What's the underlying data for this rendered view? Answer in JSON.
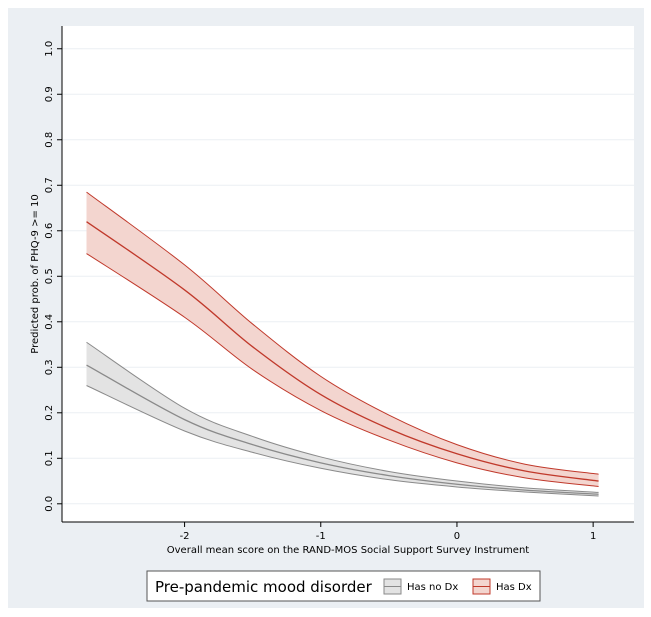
{
  "chart_data": {
    "type": "line",
    "title": "",
    "xlabel": "Overall mean score on the RAND-MOS Social Support Survey Instrument",
    "ylabel": "Predicted prob. of PHQ-9 >= 10",
    "xlim": [
      -2.9,
      1.3
    ],
    "ylim": [
      -0.04,
      1.05
    ],
    "xticks": [
      -2,
      -1,
      0,
      1
    ],
    "xtick_labels": [
      "-2",
      "-1",
      "0",
      "1"
    ],
    "yticks": [
      0,
      0.1,
      0.2,
      0.3,
      0.4,
      0.5,
      0.6,
      0.7,
      0.8,
      0.9,
      1.0
    ],
    "ytick_labels": [
      "0.0",
      "0.1",
      "0.2",
      "0.3",
      "0.4",
      "0.5",
      "0.6",
      "0.7",
      "0.8",
      "0.9",
      "1.0"
    ],
    "grid": true,
    "legend": {
      "title": "Pre-pandemic mood disorder",
      "position": "bottom"
    },
    "x": [
      -2.72,
      -2.0,
      -1.5,
      -1.0,
      -0.5,
      0.0,
      0.5,
      1.04
    ],
    "series": [
      {
        "name": "Has no Dx",
        "color": "#8a8a8a",
        "fill": "#e3e3e3",
        "values": [
          0.305,
          0.185,
          0.13,
          0.09,
          0.062,
          0.043,
          0.03,
          0.021
        ],
        "lower": [
          0.26,
          0.16,
          0.113,
          0.078,
          0.053,
          0.037,
          0.026,
          0.017
        ],
        "upper": [
          0.355,
          0.21,
          0.148,
          0.103,
          0.071,
          0.05,
          0.035,
          0.025
        ]
      },
      {
        "name": "Has Dx",
        "color": "#c0392b",
        "fill": "#f3d5cf",
        "values": [
          0.62,
          0.47,
          0.345,
          0.24,
          0.165,
          0.11,
          0.072,
          0.05
        ],
        "lower": [
          0.55,
          0.41,
          0.295,
          0.205,
          0.14,
          0.09,
          0.057,
          0.038
        ],
        "upper": [
          0.685,
          0.525,
          0.395,
          0.28,
          0.195,
          0.13,
          0.087,
          0.065
        ]
      }
    ]
  }
}
